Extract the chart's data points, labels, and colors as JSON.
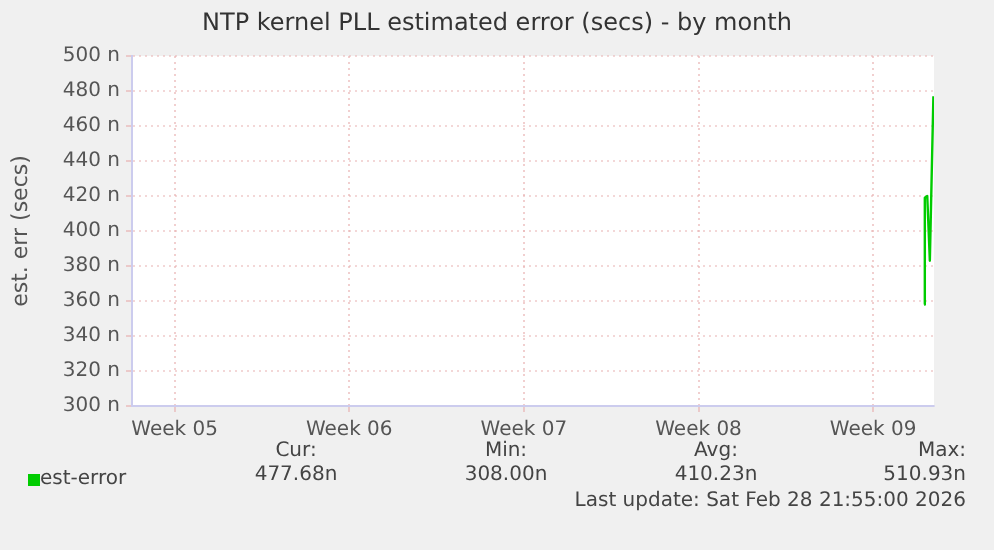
{
  "chart_data": {
    "type": "line",
    "title": "NTP kernel PLL estimated error (secs) - by month",
    "ylabel": "est. err (secs)",
    "xlim": [
      "2026-01-27T19:00",
      "2026-02-28T22:30"
    ],
    "xticks": [
      {
        "value": "2026-01-29T12:00",
        "label": "Week 05"
      },
      {
        "value": "2026-02-05T12:00",
        "label": "Week 06"
      },
      {
        "value": "2026-02-12T12:00",
        "label": "Week 07"
      },
      {
        "value": "2026-02-19T12:00",
        "label": "Week 08"
      },
      {
        "value": "2026-02-26T12:00",
        "label": "Week 09"
      }
    ],
    "ylim": [
      300,
      500
    ],
    "yticks": [
      {
        "value": 300,
        "label": "300 n"
      },
      {
        "value": 320,
        "label": "320 n"
      },
      {
        "value": 340,
        "label": "340 n"
      },
      {
        "value": 360,
        "label": "360 n"
      },
      {
        "value": 380,
        "label": "380 n"
      },
      {
        "value": 400,
        "label": "400 n"
      },
      {
        "value": 420,
        "label": "420 n"
      },
      {
        "value": 440,
        "label": "440 n"
      },
      {
        "value": 460,
        "label": "460 n"
      },
      {
        "value": 480,
        "label": "480 n"
      },
      {
        "value": 500,
        "label": "500 n"
      }
    ],
    "grid": true,
    "legend": "bottom left",
    "marker": "none",
    "line_style": "solid",
    "series": [
      {
        "name": "est-error",
        "color": "#00cc00",
        "x": [
          "2026-02-28T13:00",
          "2026-02-28T13:40",
          "2026-02-28T16:00",
          "2026-02-28T18:30",
          "2026-02-28T21:55"
        ],
        "values": [
          358,
          419,
          420,
          383,
          477
        ]
      }
    ],
    "annotations": [
      "Cur:",
      "477.68n",
      "Min:",
      "308.00n",
      "Avg:",
      "410.23n",
      "Max:",
      "510.93n",
      "Last update: Sat Feb 28 21:55:00 2026"
    ]
  }
}
